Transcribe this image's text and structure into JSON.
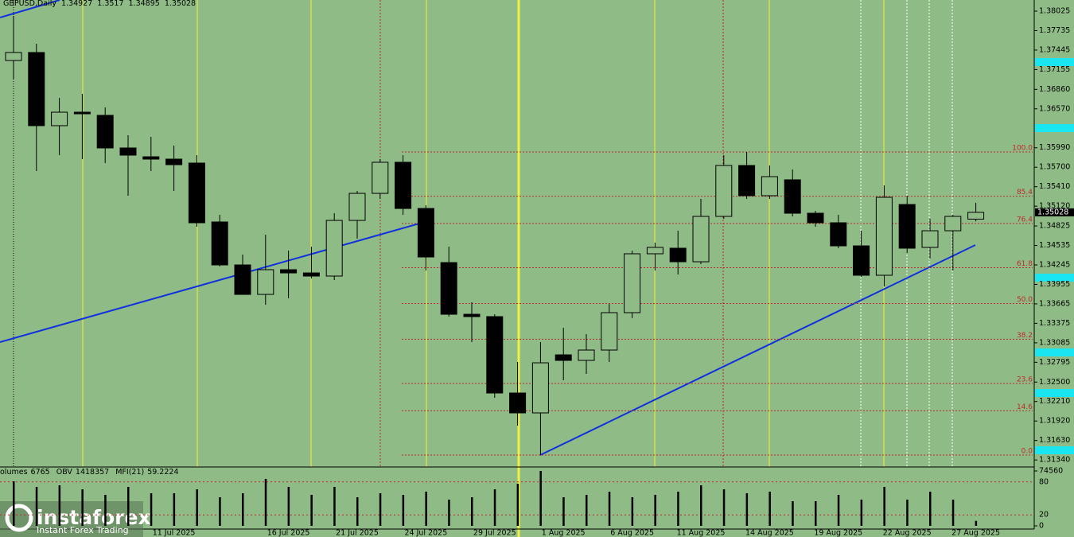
{
  "chart_data": [
    {
      "type": "candlestick",
      "title": "GBPUSD,Daily",
      "x": [
        null,
        null,
        null,
        null,
        null,
        null,
        null,
        "11 Jul 2025",
        null,
        null,
        null,
        null,
        "16 Jul 2025",
        null,
        null,
        "21 Jul 2025",
        null,
        null,
        "24 Jul 2025",
        null,
        null,
        "29 Jul 2025",
        null,
        null,
        "1 Aug 2025",
        null,
        null,
        "6 Aug 2025",
        null,
        null,
        "11 Aug 2025",
        null,
        null,
        "14 Aug 2025",
        null,
        null,
        "19 Aug 2025",
        null,
        null,
        "22 Aug 2025",
        null,
        null,
        "27 Aug 2025"
      ],
      "open": [
        1.3729,
        1.37409,
        1.36319,
        1.3652,
        1.36473,
        1.35987,
        1.35856,
        1.35821,
        1.35762,
        1.34885,
        1.34245,
        1.33806,
        1.34174,
        1.34126,
        1.34079,
        1.34908,
        1.35311,
        1.35774,
        1.35086,
        1.3428,
        1.3351,
        1.33475,
        1.32337,
        1.32041,
        1.32906,
        1.32823,
        1.32977,
        1.33534,
        1.34411,
        1.34494,
        1.34292,
        1.34968,
        1.35726,
        1.35276,
        1.35513,
        1.35015,
        1.34873,
        1.34529,
        1.34091,
        1.35145,
        1.34506,
        1.34754,
        1.34927
      ],
      "high": [
        1.37954,
        1.37539,
        1.36733,
        1.36793,
        1.36591,
        1.36176,
        1.36153,
        1.36022,
        1.3588,
        1.34991,
        1.34399,
        1.34695,
        1.34458,
        1.34517,
        1.35015,
        1.35347,
        1.35821,
        1.3588,
        1.35134,
        1.34517,
        1.33688,
        1.3351,
        1.32799,
        1.33095,
        1.33309,
        1.33214,
        1.33664,
        1.34458,
        1.34577,
        1.34754,
        1.35228,
        1.3588,
        1.35928,
        1.35726,
        1.35667,
        1.35051,
        1.34991,
        1.34754,
        1.3543,
        1.35276,
        1.34932,
        1.34991,
        1.3517
      ],
      "low": [
        1.37006,
        1.35643,
        1.3588,
        1.35821,
        1.35762,
        1.35276,
        1.35643,
        1.35347,
        1.34814,
        1.34221,
        1.33806,
        1.33652,
        1.33747,
        1.34043,
        1.3402,
        1.34636,
        1.35228,
        1.34991,
        1.34162,
        1.33475,
        1.33095,
        1.32266,
        1.31851,
        1.31413,
        1.32527,
        1.32621,
        1.32799,
        1.33451,
        1.34162,
        1.34103,
        1.34257,
        1.34932,
        1.35228,
        1.35228,
        1.34968,
        1.34814,
        1.34494,
        1.34067,
        1.33925,
        1.34423,
        1.3434,
        1.34162,
        1.34895
      ],
      "close": [
        1.37409,
        1.36319,
        1.3652,
        1.36496,
        1.35987,
        1.3588,
        1.35821,
        1.35738,
        1.34873,
        1.34245,
        1.33806,
        1.34174,
        1.34126,
        1.34079,
        1.34908,
        1.35311,
        1.35774,
        1.35086,
        1.34363,
        1.3351,
        1.33475,
        1.32337,
        1.32041,
        1.32787,
        1.32823,
        1.32977,
        1.33534,
        1.34411,
        1.34506,
        1.34292,
        1.34968,
        1.35726,
        1.35276,
        1.3556,
        1.35015,
        1.34873,
        1.34529,
        1.34091,
        1.35252,
        1.34494,
        1.34754,
        1.34968,
        1.35028
      ],
      "up_color": "#8fbc86",
      "down_color": "#000000",
      "ylim": [
        1.31247,
        1.38191
      ],
      "yticks": [
        1.38025,
        1.37735,
        1.37445,
        1.37155,
        {
          "value": 1.3686,
          "label": "1.36860"
        },
        {
          "value": 1.3657,
          "label": "1.36570"
        },
        {
          "value": 1.3599,
          "label": "1.35990"
        },
        {
          "value": 1.357,
          "label": "1.35700"
        },
        {
          "value": 1.3541,
          "label": "1.35410"
        },
        {
          "value": 1.3512,
          "label": "1.35120"
        },
        1.34825,
        1.34535,
        1.34245,
        1.33955,
        1.33665,
        1.33375,
        1.33085,
        1.32795,
        {
          "value": 1.325,
          "label": "1.32500"
        },
        {
          "value": 1.3221,
          "label": "1.32210"
        },
        {
          "value": 1.3192,
          "label": "1.31920"
        },
        {
          "value": 1.3163,
          "label": "1.31630"
        },
        {
          "value": 1.3134,
          "label": "1.31340"
        }
      ],
      "fib_levels": [
        {
          "ratio": {
            "value": 100,
            "label": "100.0"
          },
          "price": 1.35928
        },
        {
          "ratio": 85.4,
          "price": 1.35269
        },
        {
          "ratio": 76.4,
          "price": 1.34862
        },
        {
          "ratio": 61.8,
          "price": 1.34203
        },
        {
          "ratio": {
            "value": 50,
            "label": "50.0"
          },
          "price": 1.33671
        },
        {
          "ratio": 38.2,
          "price": 1.33138
        },
        {
          "ratio": 23.6,
          "price": 1.32479
        },
        {
          "ratio": 14.6,
          "price": 1.32072
        },
        {
          "ratio": {
            "value": 0,
            "label": "0.0"
          },
          "price": 1.31413
        }
      ],
      "fib_color": "#c0282a"
    },
    {
      "type": "bar",
      "indicators": [
        {
          "label": "olumes",
          "value": 6765
        },
        {
          "label": "OBV",
          "value": 1418357
        },
        {
          "label": "MFI(21)",
          "value": 59.2224
        }
      ],
      "values": [
        60480,
        52920,
        55080,
        49680,
        42120,
        52920,
        44280,
        44280,
        49680,
        38880,
        44280,
        63720,
        52920,
        42120,
        52920,
        38880,
        44280,
        42120,
        46440,
        35640,
        38880,
        49680,
        57240,
        74520,
        38880,
        42120,
        46440,
        38880,
        42120,
        46440,
        55080,
        49680,
        44280,
        46440,
        33480,
        33480,
        42120,
        35640,
        52920,
        35640,
        46440,
        35640,
        6765
      ],
      "color": "#000000",
      "ylim": [
        0,
        74560
      ],
      "yticks": [
        0,
        74560
      ],
      "y2lim": [
        0,
        100
      ],
      "y2ticks": [
        20,
        80
      ]
    }
  ],
  "branding": {
    "name": "instaforex",
    "tagline": "Instant Forex Trading"
  }
}
